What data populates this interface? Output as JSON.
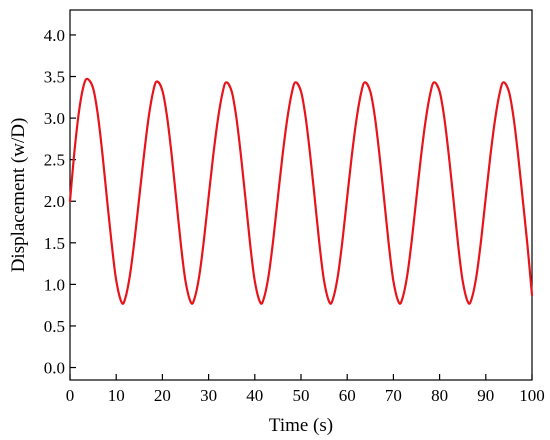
{
  "chart_data": {
    "type": "line",
    "title": "",
    "xlabel": "Time (s)",
    "ylabel": "Displacement (w/D)",
    "xlim": [
      0,
      100
    ],
    "ylim": [
      -0.15,
      4.3
    ],
    "x_ticks": [
      0,
      10,
      20,
      30,
      40,
      50,
      60,
      70,
      80,
      90,
      100
    ],
    "x_tick_labels": [
      "0",
      "10",
      "20",
      "30",
      "40",
      "50",
      "60",
      "70",
      "80",
      "90",
      "100"
    ],
    "y_ticks": [
      0.0,
      0.5,
      1.0,
      1.5,
      2.0,
      2.5,
      3.0,
      3.5,
      4.0
    ],
    "y_tick_labels": [
      "0.0",
      "0.5",
      "1.0",
      "1.5",
      "2.0",
      "2.5",
      "3.0",
      "3.5",
      "4.0"
    ],
    "grid": false,
    "legend": "none",
    "series": [
      {
        "color": "#e8141c",
        "x": [
          0,
          1,
          2,
          3,
          3.8,
          5,
          6,
          7,
          8,
          9,
          10,
          11.2,
          12,
          13,
          14,
          15,
          16,
          17,
          18,
          18.8,
          20,
          21,
          22,
          23,
          24,
          25,
          26.2,
          27,
          28,
          29,
          30,
          31,
          32,
          33,
          33.8,
          35,
          36,
          37,
          38,
          39,
          40,
          41.2,
          42,
          43,
          44,
          45,
          46,
          47,
          48,
          48.8,
          50,
          51,
          52,
          53,
          54,
          55,
          56.2,
          57,
          58,
          59,
          60,
          61,
          62,
          63,
          63.8,
          65,
          66,
          67,
          68,
          69,
          70,
          71.2,
          72,
          73,
          74,
          75,
          76,
          77,
          78,
          78.8,
          80,
          81,
          82,
          83,
          84,
          85,
          86.2,
          87,
          88,
          89,
          90,
          91,
          92,
          93,
          93.8,
          95,
          96,
          97,
          98,
          99,
          100
        ],
        "y": [
          2.0,
          2.62,
          3.1,
          3.4,
          3.47,
          3.36,
          3.05,
          2.58,
          2.03,
          1.5,
          1.05,
          0.78,
          0.84,
          1.12,
          1.55,
          2.05,
          2.55,
          3.0,
          3.32,
          3.44,
          3.33,
          3.02,
          2.56,
          2.02,
          1.48,
          1.04,
          0.78,
          0.84,
          1.11,
          1.54,
          2.05,
          2.55,
          2.98,
          3.3,
          3.43,
          3.32,
          3.01,
          2.55,
          2.02,
          1.48,
          1.04,
          0.78,
          0.84,
          1.11,
          1.54,
          2.05,
          2.55,
          2.98,
          3.3,
          3.43,
          3.32,
          3.01,
          2.55,
          2.02,
          1.48,
          1.04,
          0.78,
          0.84,
          1.11,
          1.54,
          2.05,
          2.55,
          2.98,
          3.3,
          3.43,
          3.32,
          3.01,
          2.55,
          2.02,
          1.48,
          1.04,
          0.78,
          0.84,
          1.11,
          1.54,
          2.05,
          2.55,
          2.98,
          3.3,
          3.43,
          3.32,
          3.01,
          2.55,
          2.02,
          1.48,
          1.04,
          0.78,
          0.84,
          1.11,
          1.54,
          2.05,
          2.55,
          2.98,
          3.3,
          3.43,
          3.32,
          3.01,
          2.55,
          2.02,
          1.48,
          0.87
        ]
      }
    ]
  }
}
